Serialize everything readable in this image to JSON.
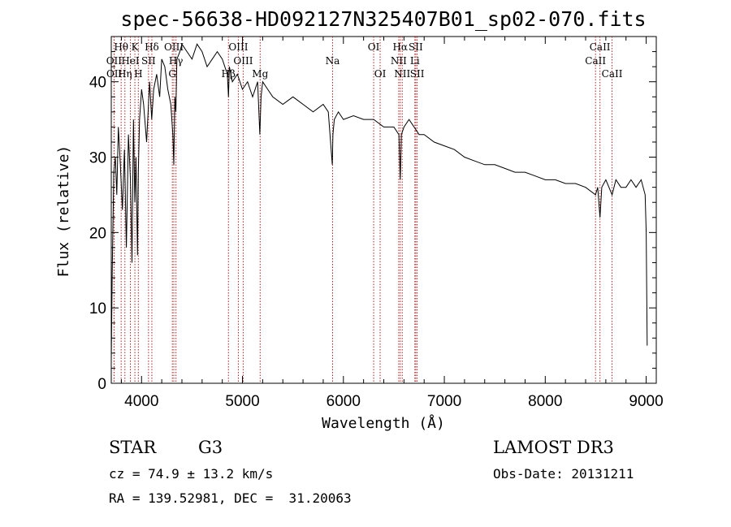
{
  "chart_data": {
    "type": "line",
    "title": "spec-56638-HD092127N325407B01_sp02-070.fits",
    "xlabel": "Wavelength (Å)",
    "ylabel": "Flux (relative)",
    "xlim": [
      3700,
      9100
    ],
    "ylim": [
      0,
      46
    ],
    "xticks": [
      4000,
      5000,
      6000,
      7000,
      8000,
      9000
    ],
    "yticks": [
      0,
      10,
      20,
      30,
      40
    ],
    "series": [
      {
        "name": "spectrum",
        "color": "#000000",
        "x": [
          3700,
          3710,
          3725,
          3740,
          3755,
          3770,
          3790,
          3810,
          3830,
          3850,
          3870,
          3890,
          3905,
          3920,
          3933,
          3945,
          3960,
          3968,
          3980,
          4000,
          4020,
          4050,
          4080,
          4101,
          4120,
          4150,
          4180,
          4200,
          4230,
          4260,
          4290,
          4310,
          4320,
          4330,
          4340,
          4350,
          4380,
          4400,
          4450,
          4500,
          4550,
          4600,
          4650,
          4700,
          4750,
          4800,
          4850,
          4861,
          4870,
          4900,
          4950,
          5000,
          5050,
          5100,
          5150,
          5172,
          5184,
          5200,
          5250,
          5300,
          5400,
          5500,
          5600,
          5700,
          5800,
          5850,
          5890,
          5896,
          5910,
          5950,
          6000,
          6100,
          6200,
          6300,
          6400,
          6500,
          6550,
          6563,
          6575,
          6600,
          6650,
          6700,
          6750,
          6800,
          6900,
          7000,
          7100,
          7200,
          7300,
          7400,
          7500,
          7600,
          7700,
          7800,
          7900,
          8000,
          8100,
          8200,
          8300,
          8400,
          8498,
          8520,
          8542,
          8560,
          8600,
          8662,
          8700,
          8750,
          8800,
          8850,
          8900,
          8950,
          8990,
          9000,
          9010
        ],
        "values": [
          3,
          15,
          28,
          30,
          25,
          34,
          29,
          23,
          31,
          18,
          33,
          27,
          16,
          35,
          24,
          30,
          17,
          28,
          35,
          39,
          37,
          32,
          40,
          35,
          39,
          41,
          38,
          43,
          42,
          39,
          37,
          33,
          29,
          38,
          36,
          43,
          44,
          45,
          44,
          43,
          45,
          44,
          42,
          43,
          44,
          43,
          41,
          38,
          42,
          40,
          41,
          39,
          40,
          38,
          40,
          33,
          38,
          40,
          39,
          38,
          37,
          38,
          37,
          36,
          37,
          36,
          29,
          33,
          35,
          36,
          35,
          35.5,
          35,
          35,
          34,
          34,
          33,
          27,
          33,
          34,
          35,
          34,
          33,
          33,
          32,
          31.5,
          31,
          30,
          29.5,
          29,
          29,
          28.5,
          28,
          28,
          27.5,
          27,
          27,
          26.5,
          26.5,
          26,
          25,
          26,
          22,
          26,
          27,
          25,
          27,
          26,
          26,
          27,
          26,
          27,
          25,
          20,
          5
        ]
      }
    ],
    "lines": [
      {
        "label": "Hθ",
        "wavelength": 3798,
        "row": 0
      },
      {
        "label": "OII",
        "wavelength": 3727,
        "row": 1
      },
      {
        "label": "OII",
        "wavelength": 3729,
        "row": 2
      },
      {
        "label": "Hη",
        "wavelength": 3835,
        "row": 2
      },
      {
        "label": "HeI",
        "wavelength": 3889,
        "row": 1
      },
      {
        "label": "K",
        "wavelength": 3934,
        "row": 0
      },
      {
        "label": "H",
        "wavelength": 3968,
        "row": 2
      },
      {
        "label": "SII",
        "wavelength": 4069,
        "row": 1
      },
      {
        "label": "Hδ",
        "wavelength": 4102,
        "row": 0
      },
      {
        "label": "OIII",
        "wavelength": 4320,
        "row": 0
      },
      {
        "label": "Hγ",
        "wavelength": 4341,
        "row": 1
      },
      {
        "label": "G",
        "wavelength": 4305,
        "row": 2
      },
      {
        "label": "OIII",
        "wavelength": 4959,
        "row": 0
      },
      {
        "label": "OIII",
        "wavelength": 5007,
        "row": 1
      },
      {
        "label": "Hβ",
        "wavelength": 4861,
        "row": 2
      },
      {
        "label": "Mg",
        "wavelength": 5175,
        "row": 2
      },
      {
        "label": "Na",
        "wavelength": 5893,
        "row": 1
      },
      {
        "label": "OI",
        "wavelength": 6300,
        "row": 0
      },
      {
        "label": "OI",
        "wavelength": 6364,
        "row": 2
      },
      {
        "label": "Hα",
        "wavelength": 6563,
        "row": 0
      },
      {
        "label": "SII",
        "wavelength": 6717,
        "row": 0
      },
      {
        "label": "NII",
        "wavelength": 6548,
        "row": 1
      },
      {
        "label": "Li",
        "wavelength": 6708,
        "row": 1
      },
      {
        "label": "NII",
        "wavelength": 6583,
        "row": 2
      },
      {
        "label": "SII",
        "wavelength": 6731,
        "row": 2
      },
      {
        "label": "CaII",
        "wavelength": 8542,
        "row": 0
      },
      {
        "label": "CaII",
        "wavelength": 8498,
        "row": 1
      },
      {
        "label": "CaII",
        "wavelength": 8662,
        "row": 2
      }
    ],
    "line_color": "#b22222"
  },
  "info": {
    "object_type": "STAR",
    "subclass": "G3",
    "survey": "LAMOST DR3",
    "cz": "cz = 74.9 ± 13.2 km/s",
    "obs_date": "Obs-Date: 20131211",
    "coords": "RA = 139.52981, DEC =  31.20063"
  }
}
